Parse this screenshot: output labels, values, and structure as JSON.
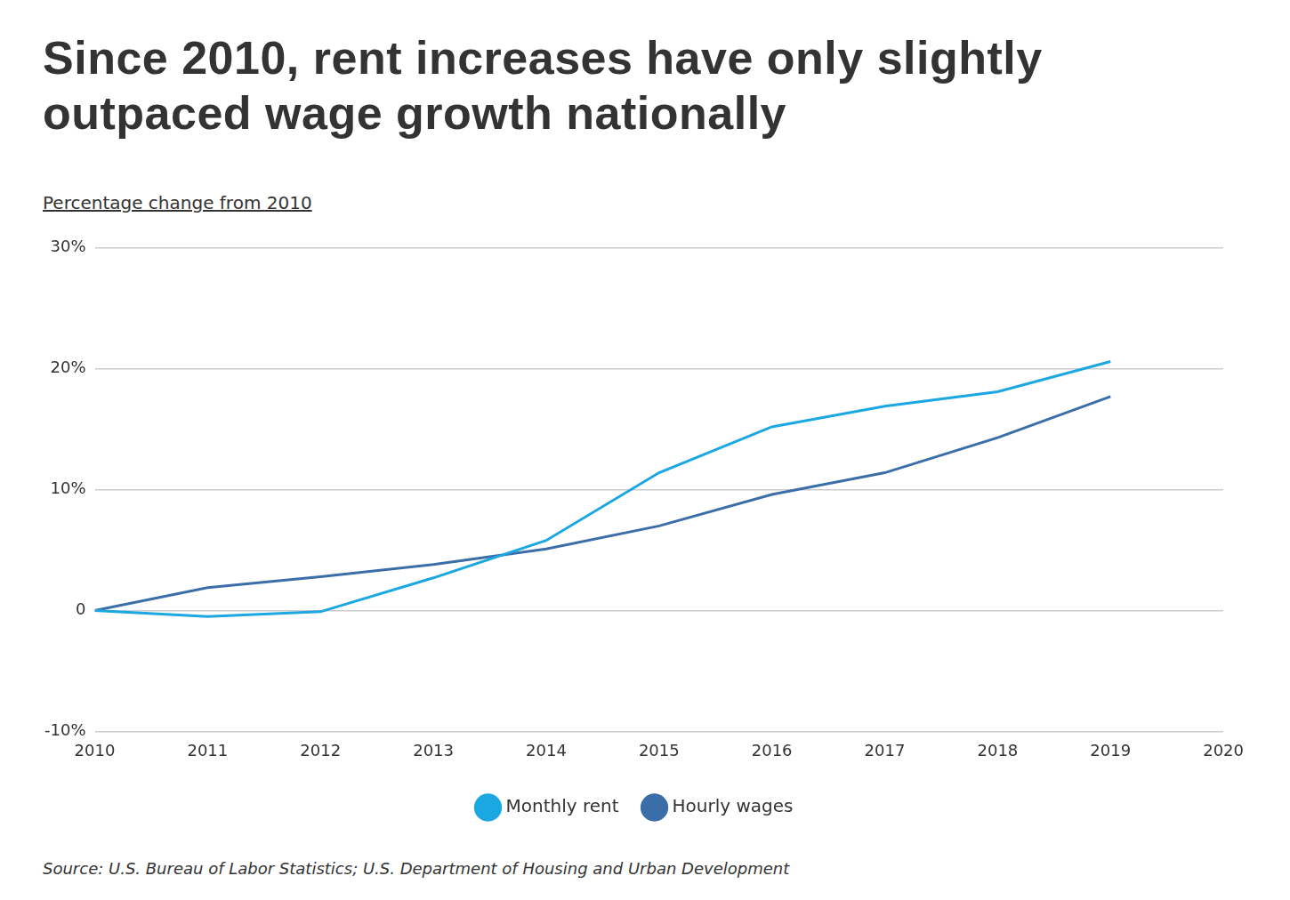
{
  "chart_data": {
    "type": "line",
    "title": "Since 2010, rent increases have only slightly outpaced wage growth nationally",
    "subtitle": "Percentage change from 2010",
    "source": "Source:  U.S. Bureau of Labor Statistics; U.S. Department of Housing and Urban Development",
    "x": [
      2010,
      2011,
      2012,
      2013,
      2014,
      2015,
      2016,
      2017,
      2018,
      2019
    ],
    "series": [
      {
        "name": "Monthly rent",
        "color": "#1aa7e2",
        "values": [
          0,
          -0.5,
          -0.1,
          2.7,
          5.8,
          11.4,
          15.2,
          16.9,
          18.1,
          20.6
        ]
      },
      {
        "name": "Hourly wages",
        "color": "#3b6ea8",
        "values": [
          0,
          1.9,
          2.8,
          3.8,
          5.1,
          7.0,
          9.6,
          11.4,
          14.3,
          17.7
        ]
      }
    ],
    "xlim": [
      2010,
      2020
    ],
    "xticks": [
      2010,
      2011,
      2012,
      2013,
      2014,
      2015,
      2016,
      2017,
      2018,
      2019,
      2020
    ],
    "ylim": [
      -10,
      30
    ],
    "yticks": [
      {
        "value": -10,
        "label": "-10%"
      },
      0,
      {
        "value": 10,
        "label": "10%"
      },
      {
        "value": 20,
        "label": "20%"
      },
      {
        "value": 30,
        "label": "30%"
      }
    ],
    "grid": true,
    "legend": "bottom"
  }
}
